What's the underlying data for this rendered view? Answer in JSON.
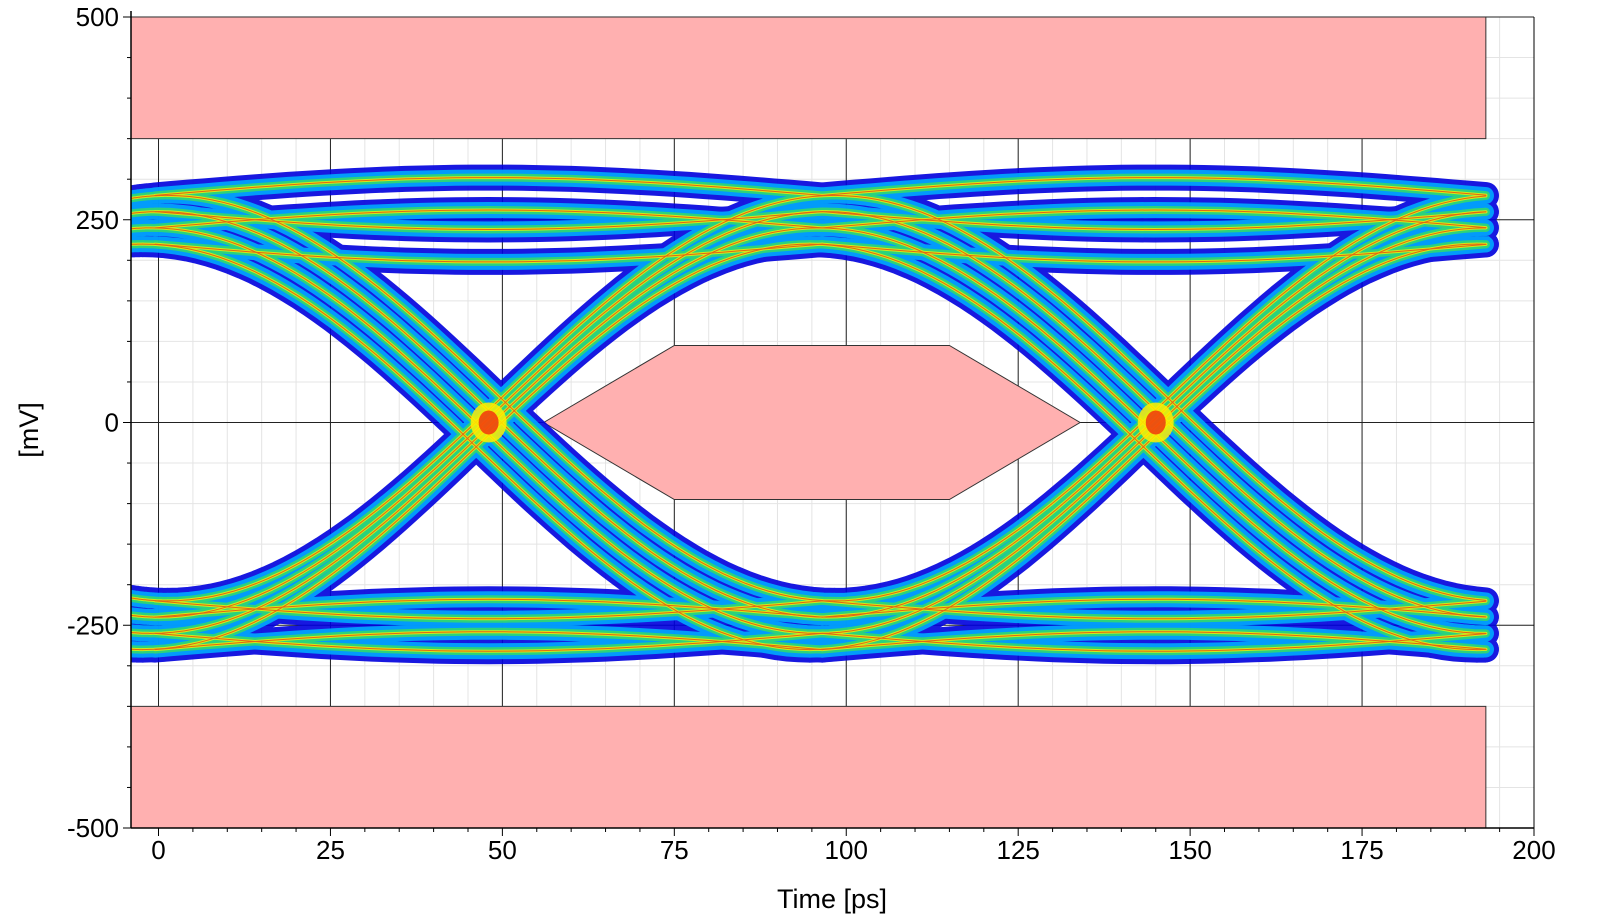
{
  "chart_data": {
    "type": "eye-diagram",
    "xlabel": "Time [ps]",
    "ylabel": "[mV]",
    "xlim": [
      -4,
      200
    ],
    "ylim": [
      -500,
      500
    ],
    "x_ticks": [
      0,
      25,
      50,
      75,
      100,
      125,
      150,
      175,
      200
    ],
    "y_ticks": [
      500,
      250,
      0,
      -250,
      -500
    ],
    "grid": true,
    "unit_interval_ps": 97,
    "crossings_ps": [
      48,
      145
    ],
    "levels_mv": {
      "high": 250,
      "low": -250
    },
    "level_spread_mv": 60,
    "eye_opening": {
      "center_ps": 99,
      "height_mv": [
        -200,
        205
      ]
    },
    "masks": [
      {
        "name": "upper-mask",
        "points": [
          [
            -4,
            350
          ],
          [
            193,
            350
          ],
          [
            193,
            500
          ],
          [
            -4,
            500
          ]
        ]
      },
      {
        "name": "lower-mask",
        "points": [
          [
            -4,
            -350
          ],
          [
            193,
            -350
          ],
          [
            193,
            -500
          ],
          [
            -4,
            -500
          ]
        ]
      },
      {
        "name": "center-mask",
        "points": [
          [
            56,
            0
          ],
          [
            75,
            95
          ],
          [
            115,
            95
          ],
          [
            134,
            0
          ],
          [
            115,
            -95
          ],
          [
            75,
            -95
          ]
        ]
      }
    ],
    "data_extent_ps": [
      -4,
      193
    ],
    "colors": {
      "mask": "#ffb0b0",
      "density_low": "#0000dd",
      "density_mid_low": "#00aaff",
      "density_mid": "#33dd66",
      "density_high": "#ffee00",
      "density_peak": "#ee1111"
    }
  }
}
